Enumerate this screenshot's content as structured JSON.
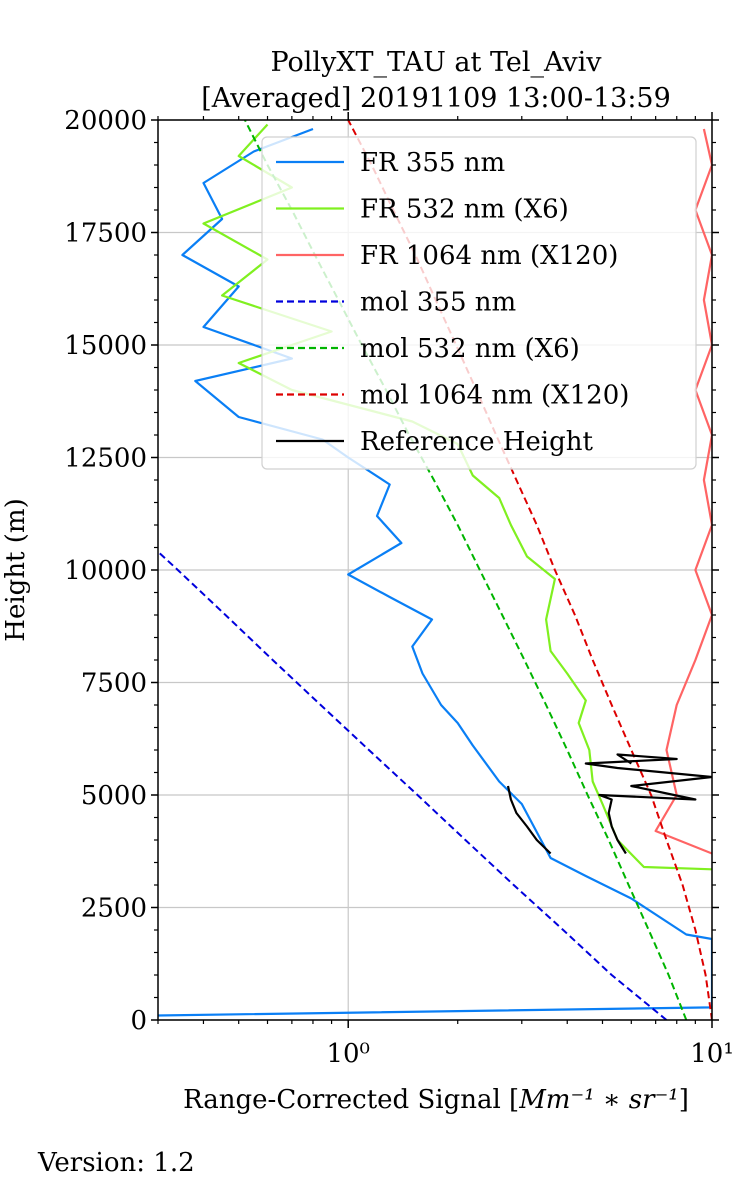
{
  "chart_data": {
    "type": "line",
    "title": "PollyXT_TAU at Tel_Aviv",
    "subtitle": "[Averaged] 20191109 13:00-13:59",
    "xlabel_prefix": "Range-Corrected Signal [",
    "xlabel_math": "Mm⁻¹ ∗ sr⁻¹",
    "xlabel_suffix": "]",
    "ylabel": "Height (m)",
    "x_scale": "log",
    "xlim": [
      0.3,
      10
    ],
    "ylim": [
      0,
      20000
    ],
    "x_ticks": [
      {
        "value": 1,
        "label": "10⁰"
      },
      {
        "value": 10,
        "label": "10¹"
      }
    ],
    "y_ticks": [
      0,
      2500,
      5000,
      7500,
      10000,
      12500,
      15000,
      17500,
      20000
    ],
    "grid": true,
    "legend_position": "top-right",
    "series": [
      {
        "name": "FR 355 nm",
        "color": "#0a7ff5",
        "style": "solid",
        "points": [
          [
            0.3,
            100
          ],
          [
            10,
            280
          ],
          [
            10,
            1800
          ],
          [
            8.5,
            1900
          ],
          [
            6,
            2700
          ],
          [
            4.5,
            3200
          ],
          [
            3.6,
            3600
          ],
          [
            3.0,
            4800
          ],
          [
            2.6,
            5300
          ],
          [
            2.2,
            6100
          ],
          [
            2.0,
            6600
          ],
          [
            1.8,
            7000
          ],
          [
            1.6,
            7700
          ],
          [
            1.5,
            8300
          ],
          [
            1.7,
            8900
          ],
          [
            1.3,
            9400
          ],
          [
            1.0,
            9900
          ],
          [
            1.4,
            10600
          ],
          [
            1.2,
            11200
          ],
          [
            1.3,
            11900
          ],
          [
            1.0,
            12500
          ],
          [
            0.85,
            12900
          ],
          [
            0.5,
            13400
          ],
          [
            0.38,
            14200
          ],
          [
            0.7,
            14700
          ],
          [
            0.4,
            15400
          ],
          [
            0.5,
            16300
          ],
          [
            0.35,
            17000
          ],
          [
            0.45,
            17800
          ],
          [
            0.4,
            18600
          ],
          [
            0.55,
            19300
          ],
          [
            0.8,
            19800
          ]
        ]
      },
      {
        "name": "FR 532 nm (X6)",
        "color": "#80f020",
        "style": "solid",
        "points": [
          [
            10,
            3350
          ],
          [
            6.5,
            3400
          ],
          [
            5.5,
            4000
          ],
          [
            5.0,
            4800
          ],
          [
            4.7,
            5300
          ],
          [
            4.6,
            6000
          ],
          [
            4.3,
            6600
          ],
          [
            4.5,
            7100
          ],
          [
            4.0,
            7700
          ],
          [
            3.6,
            8200
          ],
          [
            3.5,
            8900
          ],
          [
            3.7,
            9800
          ],
          [
            3.1,
            10300
          ],
          [
            2.8,
            11000
          ],
          [
            2.6,
            11600
          ],
          [
            2.2,
            12100
          ],
          [
            2.0,
            12800
          ],
          [
            1.5,
            13300
          ],
          [
            0.7,
            14000
          ],
          [
            0.5,
            14600
          ],
          [
            0.9,
            15300
          ],
          [
            0.45,
            16100
          ],
          [
            0.6,
            16900
          ],
          [
            0.4,
            17700
          ],
          [
            0.7,
            18500
          ],
          [
            0.5,
            19200
          ],
          [
            0.6,
            19900
          ]
        ]
      },
      {
        "name": "FR 1064 nm (X120)",
        "color": "#ff6464",
        "style": "solid",
        "points": [
          [
            10,
            3700
          ],
          [
            7,
            4200
          ],
          [
            8,
            5000
          ],
          [
            7.5,
            6000
          ],
          [
            8,
            7000
          ],
          [
            9,
            8000
          ],
          [
            10,
            9000
          ],
          [
            9,
            10000
          ],
          [
            10,
            11000
          ],
          [
            9.5,
            12000
          ],
          [
            10,
            13000
          ],
          [
            9,
            14000
          ],
          [
            10,
            15000
          ],
          [
            9.5,
            16000
          ],
          [
            10,
            17000
          ],
          [
            9,
            18000
          ],
          [
            10,
            19000
          ],
          [
            9.5,
            19800
          ]
        ]
      },
      {
        "name": "mol 355 nm",
        "color": "#0000dd",
        "style": "dashed",
        "points": [
          [
            7.5,
            0
          ],
          [
            5.3,
            1000
          ],
          [
            3.9,
            2000
          ],
          [
            2.85,
            3000
          ],
          [
            2.1,
            4000
          ],
          [
            1.55,
            5000
          ],
          [
            1.14,
            6000
          ],
          [
            0.84,
            7000
          ],
          [
            0.62,
            8000
          ],
          [
            0.46,
            9000
          ],
          [
            0.34,
            10000
          ],
          [
            0.25,
            11000
          ]
        ]
      },
      {
        "name": "mol 532 nm (X6)",
        "color": "#00b400",
        "style": "dashed",
        "points": [
          [
            8.5,
            0
          ],
          [
            7.6,
            1000
          ],
          [
            6.7,
            2000
          ],
          [
            5.9,
            3000
          ],
          [
            5.2,
            4000
          ],
          [
            4.55,
            5000
          ],
          [
            4.0,
            6000
          ],
          [
            3.5,
            7000
          ],
          [
            3.05,
            8000
          ],
          [
            2.65,
            9000
          ],
          [
            2.3,
            10000
          ],
          [
            2.0,
            11000
          ],
          [
            1.72,
            12000
          ],
          [
            1.47,
            13000
          ],
          [
            1.27,
            14000
          ],
          [
            1.09,
            15000
          ],
          [
            0.94,
            16000
          ],
          [
            0.81,
            17000
          ],
          [
            0.7,
            18000
          ],
          [
            0.6,
            19000
          ],
          [
            0.52,
            20000
          ]
        ]
      },
      {
        "name": "mol 1064 nm (X120)",
        "color": "#dd0000",
        "style": "dashed",
        "points": [
          [
            10,
            0
          ],
          [
            9.6,
            1000
          ],
          [
            9.0,
            2000
          ],
          [
            8.3,
            3000
          ],
          [
            7.5,
            4000
          ],
          [
            6.8,
            5000
          ],
          [
            6.0,
            6000
          ],
          [
            5.3,
            7000
          ],
          [
            4.7,
            8000
          ],
          [
            4.2,
            9000
          ],
          [
            3.7,
            10000
          ],
          [
            3.3,
            11000
          ],
          [
            2.9,
            12000
          ],
          [
            2.55,
            13000
          ],
          [
            2.25,
            14000
          ],
          [
            1.98,
            15000
          ],
          [
            1.74,
            16000
          ],
          [
            1.53,
            17000
          ],
          [
            1.33,
            18000
          ],
          [
            1.16,
            19000
          ],
          [
            1.0,
            20000
          ]
        ]
      },
      {
        "name": "Reference Height",
        "color": "#000000",
        "style": "solid",
        "segments": [
          [
            [
              3.6,
              3700
            ],
            [
              3.3,
              4000
            ],
            [
              3.1,
              4300
            ],
            [
              2.9,
              4600
            ],
            [
              2.8,
              4900
            ],
            [
              2.75,
              5200
            ]
          ],
          [
            [
              5.8,
              3700
            ],
            [
              5.5,
              4000
            ],
            [
              5.3,
              4300
            ],
            [
              5.2,
              4600
            ],
            [
              5.3,
              4900
            ],
            [
              4.9,
              5000
            ],
            [
              9,
              4900
            ],
            [
              6.0,
              5200
            ],
            [
              10,
              5400
            ],
            [
              5.5,
              5600
            ],
            [
              4.5,
              5700
            ],
            [
              8,
              5800
            ],
            [
              5.5,
              5900
            ],
            [
              6.0,
              5700
            ]
          ]
        ]
      }
    ]
  },
  "footer": {
    "version": "Version: 1.2"
  }
}
